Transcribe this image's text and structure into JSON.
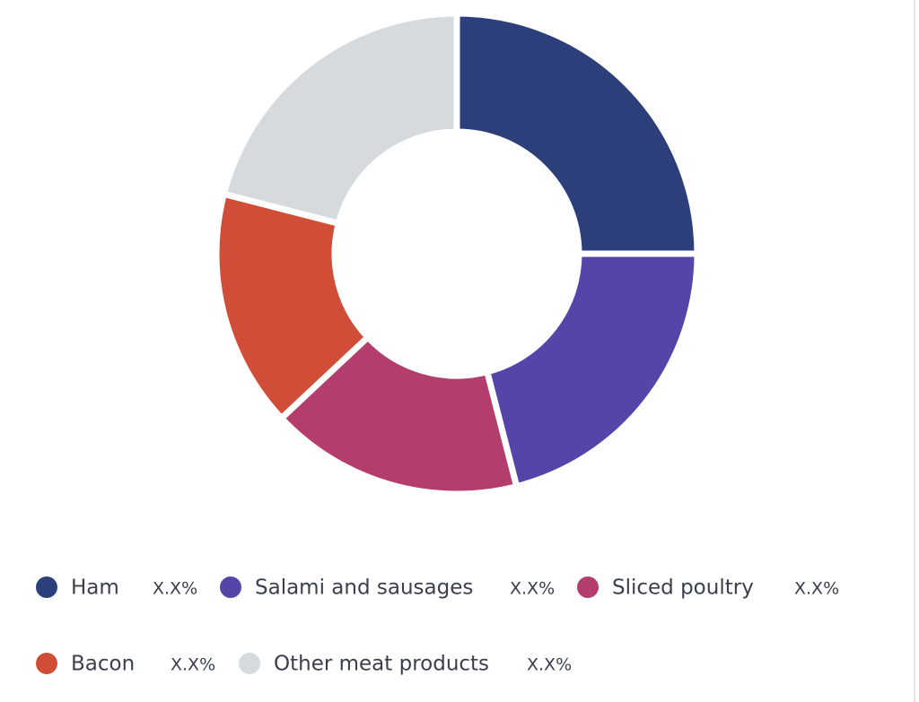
{
  "chart_data": {
    "type": "donut",
    "categories": [
      "Ham",
      "Salami and sausages",
      "Sliced poultry",
      "Bacon",
      "Other meat products"
    ],
    "values": [
      25,
      21,
      17,
      16,
      21
    ],
    "value_labels": [
      "X.X%",
      "X.X%",
      "X.X%",
      "X.X%",
      "X.X%"
    ],
    "colors": [
      "#2c3f7b",
      "#5545a8",
      "#b33d6d",
      "#d04d37",
      "#d5dadf"
    ]
  }
}
